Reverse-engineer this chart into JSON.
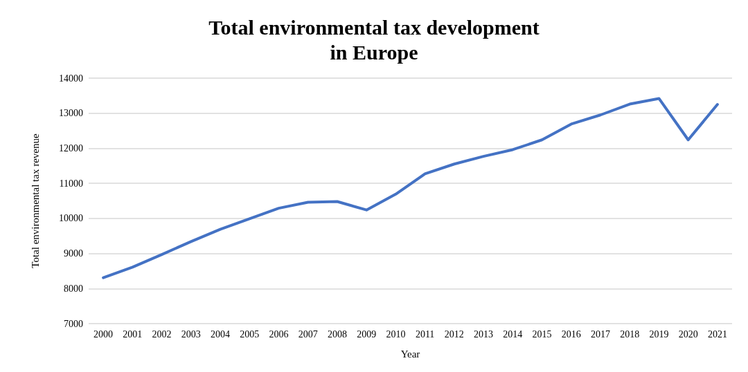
{
  "chart_data": {
    "type": "line",
    "title": "Total environmental tax development\nin Europe",
    "xlabel": "Year",
    "ylabel": "Total environmental tax revenue",
    "categories": [
      "2000",
      "2001",
      "2002",
      "2003",
      "2004",
      "2005",
      "2006",
      "2007",
      "2008",
      "2009",
      "2010",
      "2011",
      "2012",
      "2013",
      "2014",
      "2015",
      "2016",
      "2017",
      "2018",
      "2019",
      "2020",
      "2021"
    ],
    "series": [
      {
        "color": "#4472c4",
        "values": [
          8310,
          8610,
          8970,
          9340,
          9690,
          9990,
          10290,
          10460,
          10480,
          10240,
          10690,
          11270,
          11550,
          11770,
          11960,
          12240,
          12690,
          12950,
          13260,
          13420,
          12240,
          13250
        ]
      }
    ],
    "ylim": [
      7000,
      14000
    ],
    "yticks": [
      7000,
      8000,
      9000,
      10000,
      11000,
      12000,
      13000,
      14000
    ],
    "grid": "y",
    "marker": "none",
    "line_style": "solid"
  }
}
